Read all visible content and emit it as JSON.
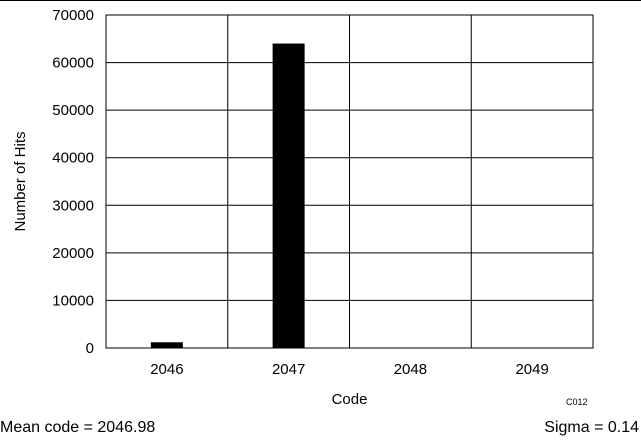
{
  "chart_data": {
    "type": "bar",
    "categories": [
      "2046",
      "2047",
      "2048",
      "2049"
    ],
    "values": [
      1200,
      64000,
      0,
      0
    ],
    "xlabel": "Code",
    "ylabel": "Number of Hits",
    "ylim": [
      0,
      70000
    ],
    "yticks": [
      0,
      10000,
      20000,
      30000,
      40000,
      50000,
      60000,
      70000
    ],
    "grid": true,
    "bar_color": "#000000"
  },
  "figure_code": "C012",
  "stats": {
    "mean": "Mean code = 2046.98",
    "sigma": "Sigma = 0.14"
  }
}
